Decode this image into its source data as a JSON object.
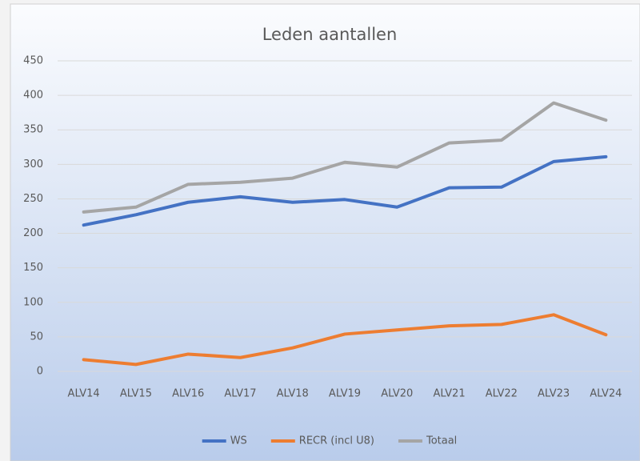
{
  "chart_data": {
    "type": "line",
    "title": "Leden aantallen",
    "categories": [
      "ALV14",
      "ALV15",
      "ALV16",
      "ALV17",
      "ALV18",
      "ALV19",
      "ALV20",
      "ALV21",
      "ALV22",
      "ALV23",
      "ALV24"
    ],
    "series": [
      {
        "name": "WS",
        "color": "#4472c4",
        "values": [
          212,
          227,
          245,
          253,
          245,
          249,
          238,
          266,
          267,
          304,
          311
        ]
      },
      {
        "name": "RECR (incl U8)",
        "color": "#ed7d31",
        "values": [
          17,
          10,
          25,
          20,
          34,
          54,
          60,
          66,
          68,
          82,
          53
        ]
      },
      {
        "name": "Totaal",
        "color": "#a5a5a5",
        "values": [
          231,
          238,
          271,
          274,
          280,
          303,
          296,
          331,
          335,
          389,
          364
        ]
      }
    ],
    "ylim": [
      0,
      450
    ],
    "yticks": [
      0,
      50,
      100,
      150,
      200,
      250,
      300,
      350,
      400,
      450
    ],
    "grid": true,
    "legend": "bottom"
  }
}
